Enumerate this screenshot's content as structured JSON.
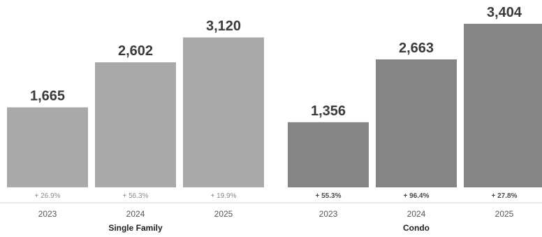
{
  "chart_data": {
    "type": "bar",
    "categories": [
      "2023",
      "2024",
      "2025"
    ],
    "groups": [
      {
        "name": "Single Family",
        "color": "#a9a9a9",
        "values": [
          1665,
          2602,
          3120
        ],
        "value_labels": [
          "1,665",
          "2,602",
          "3,120"
        ],
        "changes": [
          "+ 26.9%",
          "+ 56.3%",
          "+ 19.9%"
        ]
      },
      {
        "name": "Condo",
        "color": "#858585",
        "values": [
          1356,
          2663,
          3404
        ],
        "value_labels": [
          "1,356",
          "2,663",
          "3,404"
        ],
        "changes": [
          "+ 55.3%",
          "+ 96.4%",
          "+ 27.8%"
        ]
      }
    ],
    "ylim": [
      0,
      3404
    ],
    "grid": false,
    "legend": "none"
  }
}
